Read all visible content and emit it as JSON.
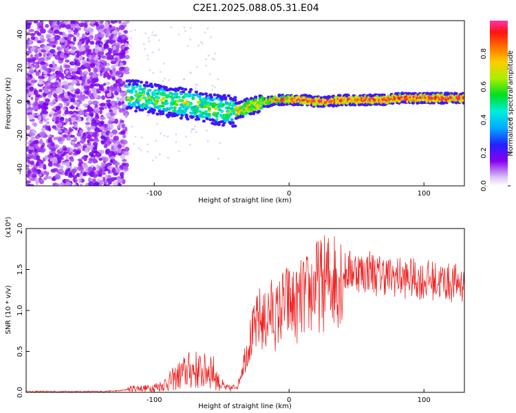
{
  "title": "C2E1.2025.088.05.31.E04",
  "chart_data": [
    {
      "type": "heatmap",
      "xlabel": "Height of straight line (km)",
      "ylabel": "Frequency (Hz)",
      "xlim": [
        -195,
        130
      ],
      "ylim": [
        -50,
        48
      ],
      "xticks": [
        -100,
        0,
        100
      ],
      "xtick_labels": [
        "-100",
        "0",
        "100"
      ],
      "yticks": [
        -40,
        -20,
        0,
        20,
        40
      ],
      "ytick_labels": [
        "-40",
        "-20",
        "0",
        "20",
        "40"
      ],
      "colorbar": {
        "label": "Normalized spectral amplitude",
        "range": [
          0,
          1
        ],
        "ticks": [
          0.0,
          0.2,
          0.4,
          0.6,
          0.8
        ],
        "tick_labels": [
          "0.0",
          "0.2",
          "0.4",
          "0.6",
          "0.8"
        ]
      },
      "ridge": {
        "x": [
          -120,
          -110,
          -100,
          -90,
          -80,
          -70,
          -60,
          -50,
          -40,
          -30,
          -20,
          -10,
          0,
          10,
          20,
          30,
          40,
          50,
          60,
          70,
          80,
          90,
          100,
          110,
          120,
          130
        ],
        "frequency": [
          4,
          3,
          2,
          0,
          -1,
          -2,
          -4,
          -5,
          -6,
          -3,
          -1,
          1,
          1,
          1,
          0,
          0,
          1,
          1,
          1,
          1,
          2,
          2,
          2,
          2,
          2,
          2
        ]
      },
      "grid": false
    },
    {
      "type": "line",
      "xlabel": "Height of straight line (km)",
      "ylabel": "SNR (10 * v/v)",
      "y_multiplier_label": "(x10⁴)",
      "xlim": [
        -195,
        130
      ],
      "ylim": [
        0,
        2.0
      ],
      "xticks": [
        -100,
        0,
        100
      ],
      "xtick_labels": [
        "-100",
        "0",
        "100"
      ],
      "yticks": [
        0.0,
        0.5,
        1.0,
        1.5,
        2.0
      ],
      "ytick_labels": [
        "0.0",
        "0.5",
        "1.0",
        "1.5",
        "2.0"
      ],
      "series": [
        {
          "color": "#ee2222",
          "x": [
            -195,
            -180,
            -160,
            -140,
            -125,
            -115,
            -105,
            -95,
            -88,
            -82,
            -76,
            -70,
            -64,
            -58,
            -52,
            -47,
            -42,
            -38,
            -34,
            -30,
            -26,
            -22,
            -18,
            -14,
            -10,
            -5,
            0,
            5,
            10,
            15,
            20,
            25,
            30,
            35,
            40,
            45,
            50,
            55,
            60,
            65,
            70,
            75,
            80,
            85,
            90,
            95,
            100,
            105,
            110,
            115,
            120,
            125,
            130
          ],
          "y": [
            0.01,
            0.01,
            0.01,
            0.01,
            0.02,
            0.05,
            0.05,
            0.08,
            0.14,
            0.2,
            0.26,
            0.28,
            0.24,
            0.3,
            0.12,
            0.05,
            0.05,
            0.08,
            0.35,
            0.6,
            0.75,
            0.9,
            0.85,
            1.0,
            0.9,
            1.05,
            1.1,
            1.05,
            1.15,
            1.2,
            1.3,
            1.32,
            1.38,
            1.4,
            1.45,
            1.48,
            1.5,
            1.45,
            1.5,
            1.42,
            1.45,
            1.4,
            1.42,
            1.38,
            1.4,
            1.38,
            1.36,
            1.38,
            1.35,
            1.36,
            1.33,
            1.34,
            1.32
          ]
        }
      ],
      "grid": false
    }
  ]
}
